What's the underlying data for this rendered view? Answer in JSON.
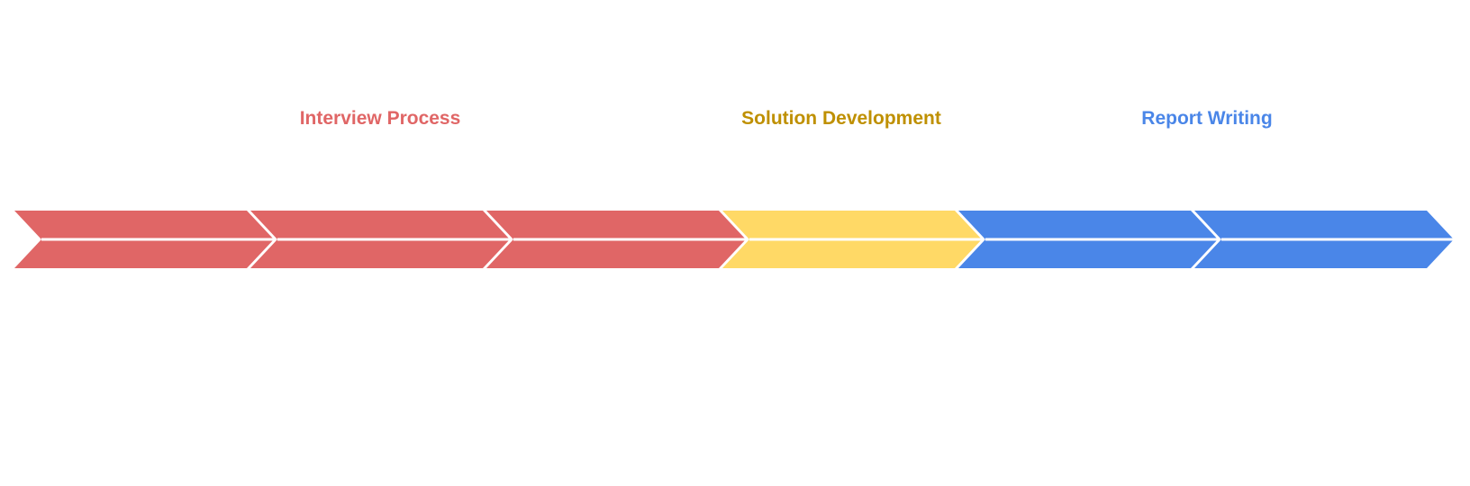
{
  "diagram": {
    "phases": [
      {
        "id": "interview",
        "label": "Interview Process",
        "color": "#e06666",
        "chevrons": 3
      },
      {
        "id": "solution",
        "label": "Solution Development",
        "color": "#ffd966",
        "label_color": "#bf9000",
        "chevrons": 1
      },
      {
        "id": "report",
        "label": "Report Writing",
        "color": "#4a86e8",
        "chevrons": 2
      }
    ]
  }
}
